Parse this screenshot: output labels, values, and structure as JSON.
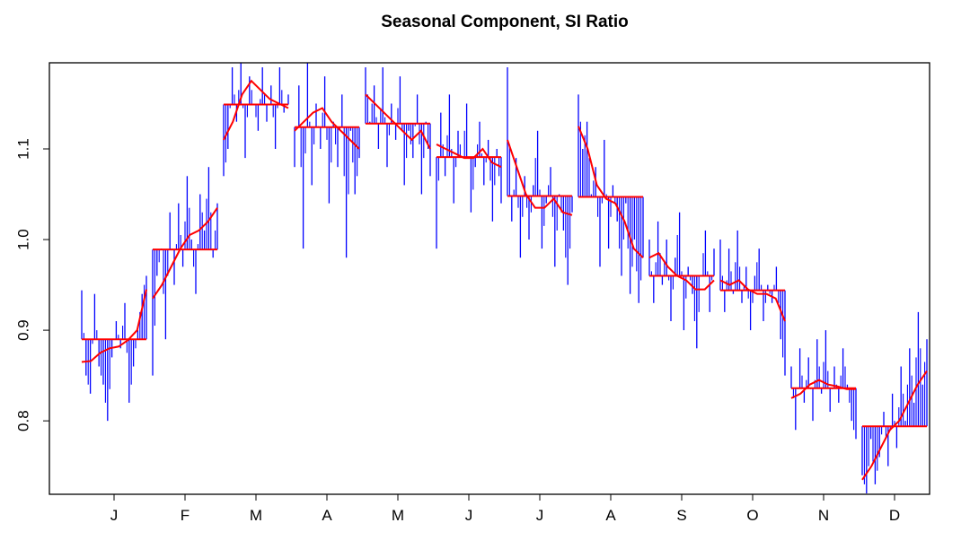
{
  "chart_data": {
    "type": "line",
    "title": "Seasonal Component, SI Ratio",
    "xlabel": "",
    "ylabel": "",
    "ylim": [
      0.719,
      1.195
    ],
    "yticks": [
      0.8,
      0.9,
      1.0,
      1.1
    ],
    "ytick_labels": [
      "0.8",
      "0.9",
      "1.0",
      "1.1"
    ],
    "categories": [
      "J",
      "F",
      "M",
      "A",
      "M",
      "J",
      "J",
      "A",
      "S",
      "O",
      "N",
      "D"
    ],
    "colors": {
      "si": "#0000ff",
      "seasonal": "#ff0000",
      "mean": "#ff0000"
    },
    "months": [
      {
        "mean": 0.89,
        "seasonal": [
          0.865,
          0.866,
          0.875,
          0.88,
          0.882,
          0.889,
          0.9,
          0.945
        ],
        "si": [
          0.944,
          0.85,
          0.83,
          0.94,
          0.86,
          0.84,
          0.8,
          0.87,
          0.91,
          0.88,
          0.93,
          0.82,
          0.86,
          0.9,
          0.94,
          0.96
        ]
      },
      {
        "mean": 0.989,
        "seasonal": [
          0.935,
          0.95,
          0.97,
          0.99,
          1.005,
          1.01,
          1.02,
          1.035
        ],
        "si": [
          0.85,
          0.96,
          0.99,
          0.89,
          1.03,
          0.95,
          1.04,
          0.97,
          1.07,
          1.0,
          0.94,
          1.05,
          1.01,
          1.08,
          0.98,
          1.04
        ]
      },
      {
        "mean": 1.149,
        "seasonal": [
          1.11,
          1.13,
          1.16,
          1.175,
          1.165,
          1.155,
          1.15,
          1.145
        ],
        "si": [
          1.07,
          1.1,
          1.19,
          1.13,
          1.2,
          1.09,
          1.18,
          1.15,
          1.12,
          1.19,
          1.13,
          1.17,
          1.1,
          1.19,
          1.14,
          1.16
        ]
      },
      {
        "mean": 1.124,
        "seasonal": [
          1.12,
          1.13,
          1.14,
          1.145,
          1.13,
          1.12,
          1.11,
          1.1
        ],
        "si": [
          1.08,
          1.17,
          0.99,
          1.2,
          1.06,
          1.15,
          1.1,
          1.18,
          1.04,
          1.13,
          1.08,
          1.16,
          0.98,
          1.12,
          1.05,
          1.09
        ]
      },
      {
        "mean": 1.128,
        "seasonal": [
          1.16,
          1.15,
          1.14,
          1.13,
          1.12,
          1.11,
          1.12,
          1.1
        ],
        "si": [
          1.19,
          1.13,
          1.17,
          1.1,
          1.19,
          1.08,
          1.15,
          1.11,
          1.18,
          1.06,
          1.12,
          1.09,
          1.16,
          1.05,
          1.13,
          1.07
        ]
      },
      {
        "mean": 1.091,
        "seasonal": [
          1.105,
          1.1,
          1.095,
          1.09,
          1.09,
          1.1,
          1.085,
          1.08
        ],
        "si": [
          0.99,
          1.14,
          1.07,
          1.16,
          1.04,
          1.12,
          1.09,
          1.15,
          1.03,
          1.08,
          1.13,
          1.06,
          1.11,
          1.02,
          1.1,
          1.04
        ]
      },
      {
        "mean": 1.048,
        "seasonal": [
          1.11,
          1.08,
          1.05,
          1.035,
          1.035,
          1.045,
          1.03,
          1.027
        ],
        "si": [
          1.19,
          1.02,
          1.09,
          0.98,
          1.07,
          1.0,
          1.06,
          1.12,
          0.99,
          1.04,
          1.08,
          0.97,
          1.05,
          1.01,
          0.95,
          1.03
        ]
      },
      {
        "mean": 1.047,
        "seasonal": [
          1.125,
          1.1,
          1.06,
          1.045,
          1.04,
          1.02,
          0.99,
          0.98
        ],
        "si": [
          1.16,
          1.1,
          1.13,
          1.05,
          1.08,
          0.97,
          1.11,
          0.99,
          1.06,
          1.02,
          0.96,
          1.04,
          0.94,
          1.0,
          0.93,
          0.98
        ]
      },
      {
        "mean": 0.96,
        "seasonal": [
          0.98,
          0.985,
          0.97,
          0.96,
          0.955,
          0.945,
          0.945,
          0.955
        ],
        "si": [
          1.0,
          0.93,
          1.02,
          0.95,
          1.0,
          0.91,
          0.98,
          1.03,
          0.9,
          0.97,
          0.94,
          0.88,
          0.96,
          1.01,
          0.92,
          0.99
        ]
      },
      {
        "mean": 0.944,
        "seasonal": [
          0.955,
          0.95,
          0.955,
          0.945,
          0.94,
          0.94,
          0.935,
          0.91
        ],
        "si": [
          1.0,
          0.92,
          0.99,
          0.94,
          1.01,
          0.93,
          0.97,
          0.9,
          0.96,
          0.99,
          0.91,
          0.95,
          0.93,
          0.97,
          0.89,
          0.85
        ]
      },
      {
        "mean": 0.836,
        "seasonal": [
          0.825,
          0.83,
          0.84,
          0.845,
          0.84,
          0.838,
          0.835,
          0.835
        ],
        "si": [
          0.86,
          0.79,
          0.88,
          0.82,
          0.87,
          0.8,
          0.89,
          0.83,
          0.9,
          0.81,
          0.86,
          0.82,
          0.88,
          0.84,
          0.8,
          0.78
        ]
      },
      {
        "mean": 0.794,
        "seasonal": [
          0.735,
          0.75,
          0.77,
          0.79,
          0.8,
          0.82,
          0.84,
          0.855
        ],
        "si": [
          0.74,
          0.72,
          0.78,
          0.73,
          0.76,
          0.81,
          0.75,
          0.83,
          0.77,
          0.86,
          0.8,
          0.88,
          0.82,
          0.92,
          0.84,
          0.89
        ]
      }
    ]
  }
}
